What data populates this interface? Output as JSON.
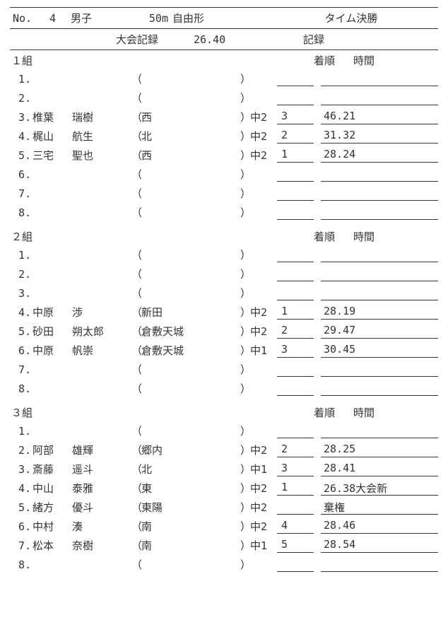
{
  "header": {
    "no_label": "No.",
    "no_value": "4",
    "gender": "男子",
    "distance": "50m",
    "stroke": "自由形",
    "final_type": "タイム決勝"
  },
  "record": {
    "label": "大会記録",
    "value": "26.40",
    "text": "記録"
  },
  "column_headers": {
    "place": "着順",
    "time": "時間"
  },
  "heats": [
    {
      "label": "１組",
      "lanes": [
        {
          "num": "1.",
          "name1": "",
          "name2": "",
          "team": "",
          "grade": "",
          "place": "",
          "time": ""
        },
        {
          "num": "2.",
          "name1": "",
          "name2": "",
          "team": "",
          "grade": "",
          "place": "",
          "time": ""
        },
        {
          "num": "3.",
          "name1": "椎葉",
          "name2": "瑞樹",
          "team": "西",
          "grade": "中2",
          "place": "3",
          "time": "46.21"
        },
        {
          "num": "4.",
          "name1": "梶山",
          "name2": "航生",
          "team": "北",
          "grade": "中2",
          "place": "2",
          "time": "31.32"
        },
        {
          "num": "5.",
          "name1": "三宅",
          "name2": "聖也",
          "team": "西",
          "grade": "中2",
          "place": "1",
          "time": "28.24"
        },
        {
          "num": "6.",
          "name1": "",
          "name2": "",
          "team": "",
          "grade": "",
          "place": "",
          "time": ""
        },
        {
          "num": "7.",
          "name1": "",
          "name2": "",
          "team": "",
          "grade": "",
          "place": "",
          "time": ""
        },
        {
          "num": "8.",
          "name1": "",
          "name2": "",
          "team": "",
          "grade": "",
          "place": "",
          "time": ""
        }
      ]
    },
    {
      "label": "２組",
      "lanes": [
        {
          "num": "1.",
          "name1": "",
          "name2": "",
          "team": "",
          "grade": "",
          "place": "",
          "time": ""
        },
        {
          "num": "2.",
          "name1": "",
          "name2": "",
          "team": "",
          "grade": "",
          "place": "",
          "time": ""
        },
        {
          "num": "3.",
          "name1": "",
          "name2": "",
          "team": "",
          "grade": "",
          "place": "",
          "time": ""
        },
        {
          "num": "4.",
          "name1": "中原",
          "name2": "渉",
          "team": "新田",
          "grade": "中2",
          "place": "1",
          "time": "28.19"
        },
        {
          "num": "5.",
          "name1": "砂田",
          "name2": "朔太郎",
          "team": "倉敷天城",
          "grade": "中2",
          "place": "2",
          "time": "29.47"
        },
        {
          "num": "6.",
          "name1": "中原",
          "name2": "帆崇",
          "team": "倉敷天城",
          "grade": "中1",
          "place": "3",
          "time": "30.45"
        },
        {
          "num": "7.",
          "name1": "",
          "name2": "",
          "team": "",
          "grade": "",
          "place": "",
          "time": ""
        },
        {
          "num": "8.",
          "name1": "",
          "name2": "",
          "team": "",
          "grade": "",
          "place": "",
          "time": ""
        }
      ]
    },
    {
      "label": "３組",
      "lanes": [
        {
          "num": "1.",
          "name1": "",
          "name2": "",
          "team": "",
          "grade": "",
          "place": "",
          "time": ""
        },
        {
          "num": "2.",
          "name1": "阿部",
          "name2": "雄輝",
          "team": "郷内",
          "grade": "中2",
          "place": "2",
          "time": "28.25"
        },
        {
          "num": "3.",
          "name1": "斎藤",
          "name2": "遥斗",
          "team": "北",
          "grade": "中1",
          "place": "3",
          "time": "28.41"
        },
        {
          "num": "4.",
          "name1": "中山",
          "name2": "泰雅",
          "team": "東",
          "grade": "中2",
          "place": "1",
          "time": "26.38大会新"
        },
        {
          "num": "5.",
          "name1": "緒方",
          "name2": "優斗",
          "team": "東陽",
          "grade": "中2",
          "place": "",
          "time": "棄権"
        },
        {
          "num": "6.",
          "name1": "中村",
          "name2": "湊",
          "team": "南",
          "grade": "中2",
          "place": "4",
          "time": "28.46"
        },
        {
          "num": "7.",
          "name1": "松本",
          "name2": "奈樹",
          "team": "南",
          "grade": "中1",
          "place": "5",
          "time": "28.54"
        },
        {
          "num": "8.",
          "name1": "",
          "name2": "",
          "team": "",
          "grade": "",
          "place": "",
          "time": ""
        }
      ]
    }
  ]
}
